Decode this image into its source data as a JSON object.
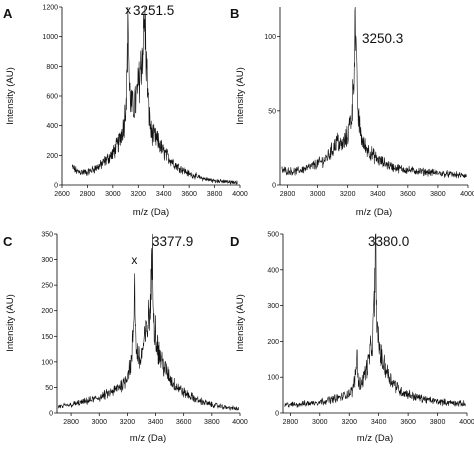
{
  "chart_data": [
    {
      "panel_label": "A",
      "type": "line",
      "xlabel": "m/z (Da)",
      "ylabel": "Intensity (AU)",
      "xlim": [
        2600,
        4000
      ],
      "ylim": [
        0,
        1200
      ],
      "xticks": [
        2600,
        2800,
        3000,
        3200,
        3400,
        3600,
        3800,
        4000
      ],
      "yticks": [
        0,
        200,
        400,
        600,
        800,
        1000,
        1200
      ],
      "peak_label": "3251.5",
      "marker": {
        "text": "x",
        "x": 3120
      },
      "series": [
        {
          "x": [
            2680,
            2720,
            2800,
            2900,
            3000,
            3050,
            3090,
            3110,
            3120,
            3130,
            3150,
            3180,
            3210,
            3240,
            3251,
            3260,
            3280,
            3300,
            3320,
            3350,
            3400,
            3500,
            3600,
            3700,
            3800,
            3900,
            3980
          ],
          "y": [
            120,
            90,
            85,
            130,
            210,
            290,
            420,
            680,
            1180,
            640,
            520,
            560,
            720,
            960,
            1150,
            900,
            520,
            360,
            330,
            300,
            220,
            130,
            75,
            45,
            28,
            22,
            18
          ]
        }
      ]
    },
    {
      "panel_label": "B",
      "type": "line",
      "xlabel": "m/z (Da)",
      "ylabel": "Intensity (AU)",
      "xlim": [
        2750,
        4000
      ],
      "ylim": [
        0,
        120
      ],
      "xticks": [
        2800,
        3000,
        3200,
        3400,
        3600,
        3800,
        4000
      ],
      "yticks": [
        0,
        50,
        100
      ],
      "peak_label": "3250.3",
      "series": [
        {
          "x": [
            2760,
            2850,
            2950,
            3050,
            3100,
            3130,
            3160,
            3200,
            3230,
            3245,
            3250,
            3255,
            3270,
            3300,
            3350,
            3400,
            3500,
            3600,
            3700,
            3800,
            3900,
            3990
          ],
          "y": [
            10,
            9,
            12,
            17,
            24,
            30,
            26,
            33,
            50,
            90,
            117,
            85,
            45,
            28,
            22,
            17,
            12,
            10,
            9,
            8,
            7,
            6
          ]
        }
      ]
    },
    {
      "panel_label": "C",
      "type": "line",
      "xlabel": "m/z (Da)",
      "ylabel": "Intensity (AU)",
      "xlim": [
        2700,
        4000
      ],
      "ylim": [
        0,
        350
      ],
      "xticks": [
        2800,
        3000,
        3200,
        3400,
        3600,
        3800,
        4000
      ],
      "yticks": [
        0,
        50,
        100,
        150,
        200,
        250,
        300,
        350
      ],
      "peak_label": "3377.9",
      "marker": {
        "text": "x",
        "x": 3250
      },
      "series": [
        {
          "x": [
            2710,
            2800,
            2900,
            3000,
            3100,
            3180,
            3230,
            3245,
            3252,
            3260,
            3290,
            3330,
            3360,
            3378,
            3390,
            3420,
            3460,
            3520,
            3600,
            3700,
            3800,
            3900,
            3990
          ],
          "y": [
            12,
            16,
            22,
            30,
            42,
            60,
            100,
            180,
            270,
            130,
            100,
            150,
            200,
            305,
            180,
            120,
            90,
            60,
            40,
            25,
            16,
            11,
            8
          ]
        }
      ]
    },
    {
      "panel_label": "D",
      "type": "line",
      "xlabel": "m/z (Da)",
      "ylabel": "Intensity (AU)",
      "xlim": [
        2750,
        4000
      ],
      "ylim": [
        0,
        500
      ],
      "xticks": [
        2800,
        3000,
        3200,
        3400,
        3600,
        3800,
        4000
      ],
      "yticks": [
        0,
        100,
        200,
        300,
        400,
        500
      ],
      "peak_label": "3380.0",
      "series": [
        {
          "x": [
            2760,
            2850,
            2950,
            3050,
            3150,
            3220,
            3245,
            3252,
            3262,
            3290,
            3330,
            3360,
            3372,
            3380,
            3390,
            3420,
            3480,
            3550,
            3650,
            3750,
            3850,
            3990
          ],
          "y": [
            22,
            24,
            28,
            35,
            45,
            60,
            110,
            175,
            80,
            90,
            140,
            210,
            330,
            465,
            220,
            150,
            95,
            60,
            45,
            35,
            30,
            25
          ]
        }
      ]
    }
  ]
}
